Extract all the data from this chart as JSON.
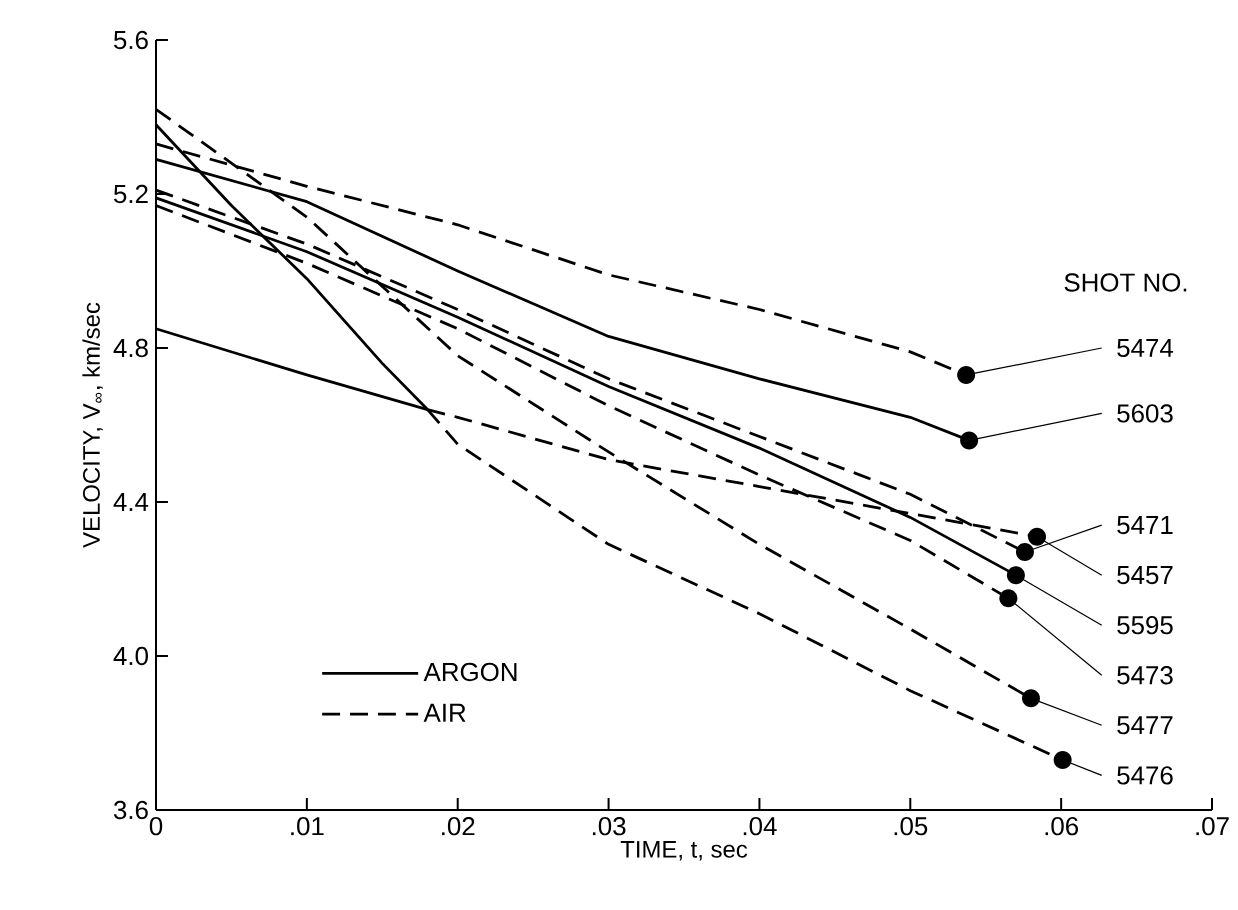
{
  "chart_data": {
    "type": "line",
    "xlabel": "TIME, t, sec",
    "ylabel": "VELOCITY, V$_{∞}$, km/sec",
    "xlim": [
      0,
      0.07
    ],
    "ylim": [
      3.6,
      5.6
    ],
    "xticks": [
      0,
      {
        "value": 0.01,
        "label": ".01"
      },
      {
        "value": 0.02,
        "label": ".02"
      },
      {
        "value": 0.03,
        "label": ".03"
      },
      {
        "value": 0.04,
        "label": ".04"
      },
      {
        "value": 0.05,
        "label": ".05"
      },
      {
        "value": 0.06,
        "label": ".06"
      },
      {
        "value": 0.07,
        "label": ".07"
      }
    ],
    "yticks": [
      3.6,
      {
        "value": 4,
        "label": "4.0"
      },
      4.4,
      4.8,
      5.2,
      5.6
    ],
    "grid": false,
    "legend": "bottom left",
    "series": [
      {
        "name": "ARGON",
        "color": "#000000",
        "line_style": "solid",
        "x": [
          0,
          0.01,
          0.02,
          0.03,
          0.04,
          0.05,
          0.0539
        ],
        "values": [
          5.29,
          5.18,
          5.0,
          4.83,
          4.72,
          4.62,
          4.56
        ]
      },
      {
        "name": "AIR",
        "color": "#000000",
        "line_style": "dashed",
        "x": [
          0,
          0.01,
          0.02,
          0.03,
          0.04,
          0.05,
          0.0537
        ],
        "values": [
          5.33,
          5.22,
          5.12,
          4.99,
          4.9,
          4.79,
          4.73
        ]
      },
      {
        "color": "#000000",
        "line_style": "solid",
        "x": [
          0,
          0.01,
          0.02,
          0.03,
          0.04,
          0.05,
          0.057
        ],
        "values": [
          5.19,
          5.05,
          4.88,
          4.7,
          4.54,
          4.36,
          4.21
        ]
      },
      {
        "color": "#000000",
        "line_style": "solid",
        "x": [
          0,
          0.005,
          0.01,
          0.015,
          0.018
        ],
        "values": [
          5.38,
          5.17,
          4.98,
          4.76,
          4.64
        ]
      },
      {
        "color": "#000000",
        "line_style": "solid",
        "x": [
          0,
          0.01,
          0.018
        ],
        "values": [
          4.85,
          4.73,
          4.64
        ]
      },
      {
        "color": "#000000",
        "line_style": "dashed",
        "x": [
          0,
          0.01,
          0.02,
          0.03,
          0.04,
          0.05,
          0.058
        ],
        "values": [
          5.42,
          5.14,
          4.78,
          4.53,
          4.29,
          4.07,
          3.89
        ]
      },
      {
        "color": "#000000",
        "line_style": "dashed",
        "x": [
          0.018,
          0.02,
          0.03,
          0.04,
          0.05,
          0.0601
        ],
        "values": [
          4.64,
          4.55,
          4.29,
          4.11,
          3.91,
          3.73
        ]
      },
      {
        "color": "#000000",
        "line_style": "dashed",
        "x": [
          0.018,
          0.02,
          0.03,
          0.04,
          0.05,
          0.0584
        ],
        "values": [
          4.64,
          4.62,
          4.51,
          4.44,
          4.37,
          4.31
        ]
      },
      {
        "color": "#000000",
        "line_style": "dashed",
        "x": [
          0,
          0.01,
          0.02,
          0.03,
          0.04,
          0.05,
          0.0576
        ],
        "values": [
          5.21,
          5.07,
          4.9,
          4.72,
          4.57,
          4.42,
          4.27
        ]
      },
      {
        "color": "#000000",
        "line_style": "dashed",
        "x": [
          0,
          0.01,
          0.02,
          0.03,
          0.04,
          0.05,
          0.0565
        ],
        "values": [
          5.17,
          5.02,
          4.85,
          4.65,
          4.47,
          4.3,
          4.15
        ]
      }
    ],
    "annotations": [
      "SHOT NO.",
      {
        "text": "5474",
        "x": 0.0537,
        "y": 4.73
      },
      {
        "text": "5603",
        "x": 0.0539,
        "y": 4.56
      },
      {
        "text": "5471",
        "x": 0.0576,
        "y": 4.27
      },
      {
        "text": "5457",
        "x": 0.0584,
        "y": 4.31
      },
      {
        "text": "5595",
        "x": 0.057,
        "y": 4.21
      },
      {
        "text": "5473",
        "x": 0.0565,
        "y": 4.15
      },
      {
        "text": "5477",
        "x": 0.058,
        "y": 3.89
      },
      {
        "text": "5476",
        "x": 0.0601,
        "y": 3.73
      }
    ]
  }
}
